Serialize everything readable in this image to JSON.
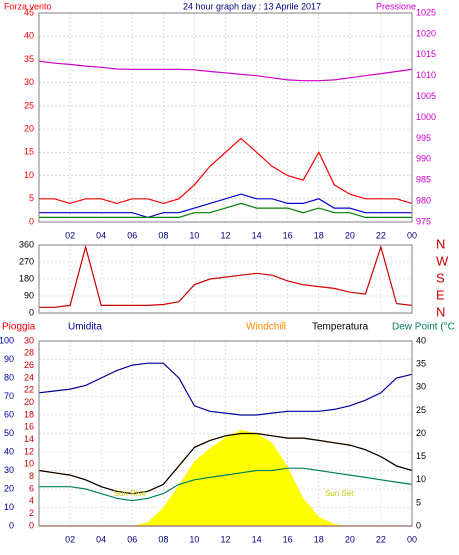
{
  "chart_data": [
    {
      "type": "line",
      "title": "24 hour graph day : 13 Aprile 2017",
      "y_label": "Forza vento",
      "y2_label": "Pressione",
      "x": [
        0,
        1,
        2,
        3,
        4,
        5,
        6,
        7,
        8,
        9,
        10,
        11,
        12,
        13,
        14,
        15,
        16,
        17,
        18,
        19,
        20,
        21,
        22,
        23,
        24
      ],
      "xlim": [
        0,
        24
      ],
      "xticks": [
        {
          "value": 2,
          "label": "02"
        },
        {
          "value": 4,
          "label": "04"
        },
        {
          "value": 6,
          "label": "06"
        },
        {
          "value": 8,
          "label": "08"
        },
        10,
        12,
        14,
        16,
        18,
        20,
        22,
        {
          "value": 24,
          "label": "00"
        }
      ],
      "ylim": [
        0,
        45
      ],
      "yticks": [
        0,
        5,
        10,
        15,
        20,
        25,
        30,
        35,
        40,
        45
      ],
      "y2lim": [
        975,
        1025
      ],
      "y2ticks": [
        975,
        980,
        985,
        990,
        995,
        1000,
        1005,
        1010,
        1015,
        1020,
        1025
      ],
      "grid": true,
      "series": [
        {
          "color": "#ff0000",
          "values": [
            5,
            5,
            4,
            5,
            5,
            4,
            5,
            5,
            4,
            5,
            8,
            12,
            15,
            18,
            15,
            12,
            10,
            9,
            15,
            8,
            6,
            5,
            5,
            5,
            4
          ]
        },
        {
          "color": "#0000cc",
          "values": [
            2,
            2,
            2,
            2,
            2,
            2,
            2,
            1,
            2,
            2,
            3,
            4,
            5,
            6,
            5,
            5,
            4,
            4,
            5,
            3,
            3,
            2,
            2,
            2,
            2
          ]
        },
        {
          "color": "#008000",
          "values": [
            1,
            1,
            1,
            1,
            1,
            1,
            1,
            1,
            1,
            1,
            2,
            2,
            3,
            4,
            3,
            3,
            3,
            2,
            3,
            2,
            2,
            1,
            1,
            1,
            1
          ]
        },
        {
          "color": "#cc00cc",
          "axis": "y2",
          "values": [
            1013.5,
            1013,
            1012.7,
            1012.3,
            1012,
            1011.6,
            1011.5,
            1011.5,
            1011.5,
            1011.5,
            1011.4,
            1011,
            1010.7,
            1010.3,
            1010,
            1009.5,
            1009,
            1008.8,
            1008.8,
            1009,
            1009.5,
            1010,
            1010.5,
            1011,
            1011.5
          ]
        }
      ]
    },
    {
      "type": "line",
      "x": [
        0,
        1,
        2,
        3,
        4,
        5,
        6,
        7,
        8,
        9,
        10,
        11,
        12,
        13,
        14,
        15,
        16,
        17,
        18,
        19,
        20,
        21,
        22,
        23,
        24
      ],
      "xlim": [
        0,
        24
      ],
      "xticks": [
        {
          "value": 2,
          "label": "02"
        },
        {
          "value": 4,
          "label": "04"
        },
        {
          "value": 6,
          "label": "06"
        },
        {
          "value": 8,
          "label": "08"
        },
        10,
        12,
        14,
        16,
        18,
        20,
        22,
        {
          "value": 24,
          "label": "00"
        }
      ],
      "ylim": [
        0,
        360
      ],
      "yticks": [
        0,
        90,
        180,
        270,
        360
      ],
      "y2lim": [
        0,
        360
      ],
      "y2ticks": [
        {
          "value": 0,
          "label": "N"
        },
        {
          "value": 90,
          "label": "E"
        },
        {
          "value": 180,
          "label": "S"
        },
        {
          "value": 270,
          "label": "W"
        },
        {
          "value": 360,
          "label": "N"
        }
      ],
      "grid": true,
      "series": [
        {
          "color": "#cc0000",
          "values": [
            30,
            30,
            40,
            350,
            40,
            40,
            40,
            40,
            45,
            60,
            150,
            180,
            190,
            200,
            210,
            200,
            170,
            150,
            140,
            130,
            110,
            100,
            350,
            50,
            40
          ]
        }
      ]
    },
    {
      "type": "line",
      "x": [
        0,
        1,
        2,
        3,
        4,
        5,
        6,
        7,
        8,
        9,
        10,
        11,
        12,
        13,
        14,
        15,
        16,
        17,
        18,
        19,
        20,
        21,
        22,
        23,
        24
      ],
      "xlim": [
        0,
        24
      ],
      "xticks": [
        {
          "value": 2,
          "label": "02"
        },
        {
          "value": 4,
          "label": "04"
        },
        {
          "value": 6,
          "label": "06"
        },
        {
          "value": 8,
          "label": "08"
        },
        10,
        12,
        14,
        16,
        18,
        20,
        22,
        {
          "value": 24,
          "label": "00"
        }
      ],
      "ylim": [
        0,
        100
      ],
      "yticks": [
        0,
        10,
        20,
        30,
        40,
        50,
        60,
        70,
        80,
        90,
        100
      ],
      "rain_ylim": [
        0,
        30
      ],
      "rain_yticks": [
        0,
        2,
        4,
        6,
        8,
        10,
        12,
        14,
        16,
        18,
        20,
        22,
        24,
        26,
        28,
        30
      ],
      "y2lim": [
        0,
        40
      ],
      "y2ticks": [
        0,
        5,
        10,
        15,
        20,
        25,
        30,
        35,
        40
      ],
      "grid": true,
      "annotations": [
        "Sun Rise",
        "Sun Set"
      ],
      "series": [
        {
          "color": "#ffff00",
          "style": "area",
          "values": [
            0,
            0,
            0,
            0,
            0,
            0,
            0,
            2,
            10,
            22,
            35,
            42,
            48,
            52,
            50,
            45,
            32,
            15,
            5,
            1,
            0,
            0,
            0,
            0,
            0
          ]
        },
        {
          "name": "Umidita",
          "color": "#000099",
          "values": [
            72,
            73,
            74,
            76,
            80,
            84,
            87,
            88,
            88,
            80,
            65,
            62,
            61,
            60,
            60,
            61,
            62,
            62,
            62,
            63,
            65,
            68,
            72,
            80,
            82
          ]
        },
        {
          "name": "Pioggia",
          "color": "#ff0000",
          "axis": "rain",
          "values": [
            0,
            0,
            0,
            0,
            0,
            0,
            0,
            0,
            0,
            0,
            0,
            0,
            0,
            0,
            0,
            0,
            0,
            0,
            0,
            0,
            0,
            0,
            0,
            0,
            0
          ]
        },
        {
          "name": "Windchill",
          "color": "#ff8c00",
          "axis": "y2",
          "values": [
            12,
            11.5,
            11,
            10,
            8.5,
            7.5,
            7,
            7.5,
            9,
            13,
            17,
            18.5,
            19.5,
            20,
            20,
            19.5,
            19,
            19,
            18.5,
            18,
            17.5,
            16.5,
            15,
            13,
            12
          ]
        },
        {
          "name": "Temperatura",
          "color": "#000000",
          "axis": "y2",
          "values": [
            12,
            11.5,
            11,
            10,
            8.5,
            7.5,
            7,
            7.5,
            9,
            13,
            17,
            18.5,
            19.5,
            20,
            20,
            19.5,
            19,
            19,
            18.5,
            18,
            17.5,
            16.5,
            15,
            13,
            12
          ]
        },
        {
          "name": "Dew Point (°C",
          "color": "#008060",
          "axis": "y2",
          "values": [
            8.5,
            8.5,
            8.5,
            8,
            7,
            6,
            5.5,
            6,
            7,
            9,
            10,
            10.5,
            11,
            11.5,
            12,
            12,
            12.5,
            12.5,
            12,
            11.5,
            11,
            10.5,
            10,
            9.5,
            9
          ]
        }
      ]
    }
  ]
}
